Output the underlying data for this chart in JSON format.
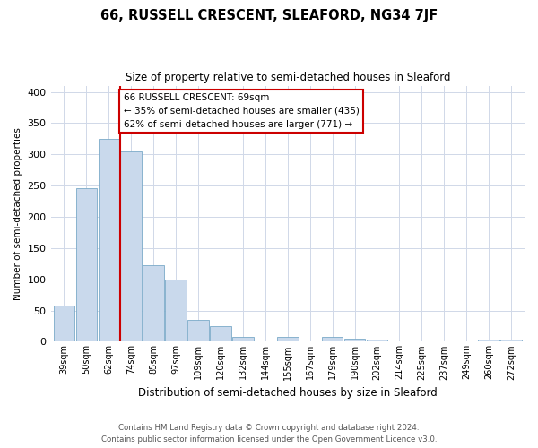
{
  "title": "66, RUSSELL CRESCENT, SLEAFORD, NG34 7JF",
  "subtitle": "Size of property relative to semi-detached houses in Sleaford",
  "xlabel": "Distribution of semi-detached houses by size in Sleaford",
  "ylabel": "Number of semi-detached properties",
  "categories": [
    "39sqm",
    "50sqm",
    "62sqm",
    "74sqm",
    "85sqm",
    "97sqm",
    "109sqm",
    "120sqm",
    "132sqm",
    "144sqm",
    "155sqm",
    "167sqm",
    "179sqm",
    "190sqm",
    "202sqm",
    "214sqm",
    "225sqm",
    "237sqm",
    "249sqm",
    "260sqm",
    "272sqm"
  ],
  "values": [
    58,
    246,
    325,
    305,
    123,
    100,
    35,
    25,
    8,
    0,
    8,
    0,
    8,
    5,
    3,
    0,
    0,
    0,
    0,
    3,
    4
  ],
  "bar_color": "#c9d9ec",
  "bar_edge_color": "#7aaac8",
  "vline_x": 2.5,
  "vline_color": "#cc0000",
  "annotation_title": "66 RUSSELL CRESCENT: 69sqm",
  "annotation_line1": "← 35% of semi-detached houses are smaller (435)",
  "annotation_line2": "62% of semi-detached houses are larger (771) →",
  "annotation_box_color": "#ffffff",
  "annotation_box_edge": "#cc0000",
  "ylim": [
    0,
    410
  ],
  "yticks": [
    0,
    50,
    100,
    150,
    200,
    250,
    300,
    350,
    400
  ],
  "footer_line1": "Contains HM Land Registry data © Crown copyright and database right 2024.",
  "footer_line2": "Contains public sector information licensed under the Open Government Licence v3.0.",
  "grid_color": "#d0d8e8",
  "background_color": "#ffffff",
  "fig_width": 6.0,
  "fig_height": 5.0,
  "fig_dpi": 100
}
